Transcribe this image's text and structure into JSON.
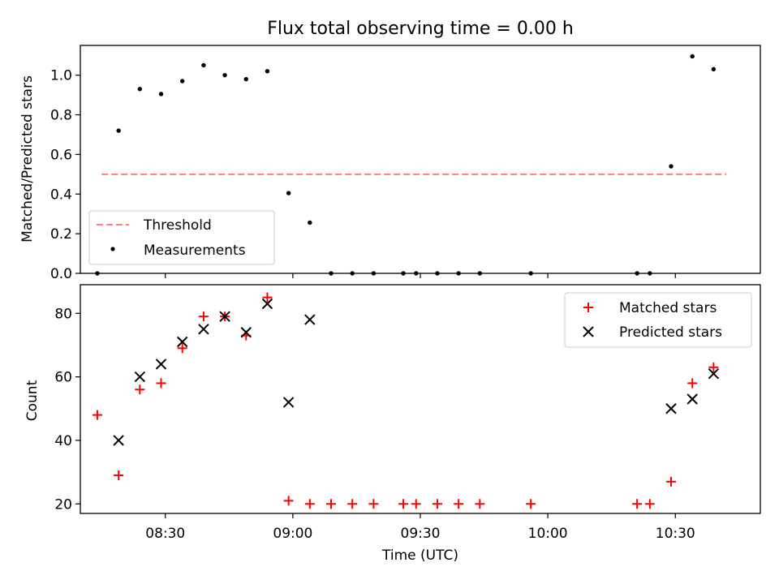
{
  "chart_data": [
    {
      "type": "scatter",
      "title": "Flux total observing time = 0.00 h",
      "ylabel": "Matched/Predicted stars",
      "xlabel": "",
      "ylim": [
        0,
        1.15
      ],
      "yticks": [
        0.0,
        0.2,
        0.4,
        0.6,
        0.8,
        1.0
      ],
      "ytick_labels": [
        "0.0",
        "0.2",
        "0.4",
        "0.6",
        "0.8",
        "1.0"
      ],
      "threshold": {
        "name": "Threshold",
        "y": 0.5,
        "x_from": "08:15",
        "x_to": "10:42",
        "color": "#ff7f7f"
      },
      "series": [
        {
          "name": "Measurements",
          "color": "#000000",
          "x": [
            "08:14",
            "08:19",
            "08:24",
            "08:29",
            "08:34",
            "08:39",
            "08:44",
            "08:49",
            "08:54",
            "08:59",
            "09:04",
            "09:09",
            "09:14",
            "09:19",
            "09:26",
            "09:29",
            "09:34",
            "09:39",
            "09:44",
            "09:56",
            "10:21",
            "10:24",
            "10:29",
            "10:34",
            "10:39"
          ],
          "y": [
            0.0,
            0.72,
            0.93,
            0.905,
            0.97,
            1.05,
            1.0,
            0.98,
            1.02,
            0.405,
            0.256,
            0.0,
            0.0,
            0.0,
            0.0,
            0.0,
            0.0,
            0.0,
            0.0,
            0.0,
            0.0,
            0.0,
            0.54,
            1.095,
            1.03
          ]
        }
      ],
      "legend": {
        "placement": "lower-left",
        "entries": [
          "Threshold",
          "Measurements"
        ]
      }
    },
    {
      "type": "scatter",
      "title": "",
      "ylabel": "Count",
      "xlabel": "Time (UTC)",
      "ylim": [
        17,
        89
      ],
      "yticks": [
        20,
        40,
        60,
        80
      ],
      "ytick_labels": [
        "20",
        "40",
        "60",
        "80"
      ],
      "xticks": [
        "08:30",
        "09:00",
        "09:30",
        "10:00",
        "10:30"
      ],
      "xlim": [
        "08:10",
        "10:50"
      ],
      "series": [
        {
          "name": "Matched stars",
          "marker": "plus",
          "color": "#ff0000",
          "x": [
            "08:14",
            "08:19",
            "08:24",
            "08:29",
            "08:34",
            "08:39",
            "08:44",
            "08:49",
            "08:54",
            "08:59",
            "09:04",
            "09:09",
            "09:14",
            "09:19",
            "09:26",
            "09:29",
            "09:34",
            "09:39",
            "09:44",
            "09:56",
            "10:21",
            "10:24",
            "10:29",
            "10:34",
            "10:39"
          ],
          "y": [
            48,
            29,
            56,
            58,
            69,
            79,
            79,
            73,
            85,
            21,
            20,
            20,
            20,
            20,
            20,
            20,
            20,
            20,
            20,
            20,
            20,
            20,
            27,
            58,
            63
          ]
        },
        {
          "name": "Predicted stars",
          "marker": "x",
          "color": "#000000",
          "x": [
            "08:19",
            "08:24",
            "08:29",
            "08:34",
            "08:39",
            "08:44",
            "08:49",
            "08:54",
            "08:59",
            "09:04",
            "10:29",
            "10:34",
            "10:39"
          ],
          "y": [
            40,
            60,
            64,
            71,
            75,
            79,
            74,
            83,
            52,
            78,
            50,
            53,
            61
          ]
        }
      ],
      "legend": {
        "placement": "top-right",
        "entries": [
          "Matched stars",
          "Predicted stars"
        ]
      }
    }
  ]
}
